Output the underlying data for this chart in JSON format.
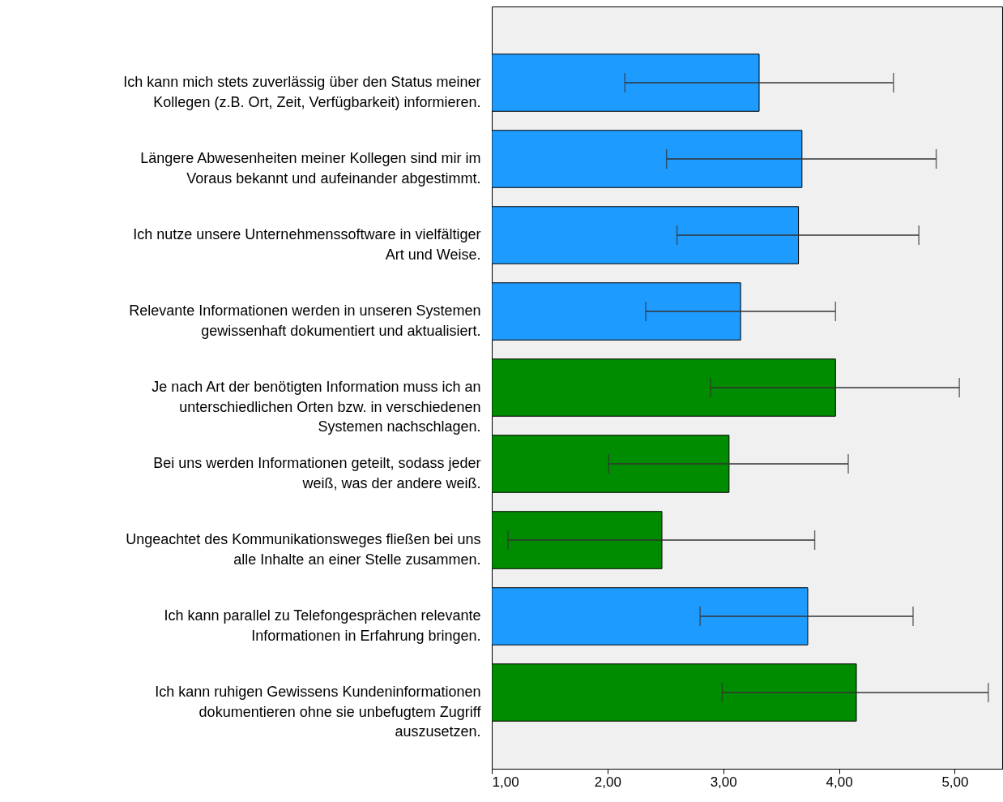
{
  "chart_data": {
    "type": "bar",
    "orientation": "horizontal",
    "categories": [
      "Ich kann mich stets zuverlässig über den Status meiner\nKollegen (z.B. Ort, Zeit, Verfügbarkeit) informieren.",
      "Längere Abwesenheiten meiner Kollegen sind mir im\nVoraus bekannt und aufeinander abgestimmt.",
      "Ich nutze unsere Unternehmenssoftware in vielfältiger\nArt und Weise.",
      "Relevante Informationen werden in unseren Systemen\ngewissenhaft dokumentiert und aktualisiert.",
      "Je nach Art der benötigten Information muss ich an\nunterschiedlichen Orten bzw. in verschiedenen\nSystemen nachschlagen.",
      "Bei uns werden Informationen geteilt, sodass jeder\nweiß, was der andere weiß.",
      "Ungeachtet des Kommunikationsweges fließen bei uns\nalle Inhalte an einer Stelle zusammen.",
      "Ich kann parallel zu Telefongesprächen relevante\nInformationen in Erfahrung bringen.",
      "Ich kann ruhigen Gewissens Kundeninformationen\ndokumentieren ohne sie unbefugtem Zugriff\nauszusetzen."
    ],
    "values": [
      3.31,
      3.68,
      3.65,
      3.15,
      3.97,
      3.05,
      2.47,
      3.73,
      4.15
    ],
    "errors": [
      [
        2.15,
        4.47
      ],
      [
        2.51,
        4.84
      ],
      [
        2.6,
        4.69
      ],
      [
        2.33,
        3.97
      ],
      [
        2.89,
        5.04
      ],
      [
        2.01,
        4.08
      ],
      [
        1.14,
        3.79
      ],
      [
        2.8,
        4.64
      ],
      [
        2.99,
        5.29
      ]
    ],
    "colors": [
      "#1e9bff",
      "#1e9bff",
      "#1e9bff",
      "#1e9bff",
      "#008c00",
      "#008c00",
      "#008c00",
      "#1e9bff",
      "#008c00"
    ],
    "xlim": [
      1,
      5.41
    ],
    "xticks": [
      {
        "value": 1,
        "label": "1,00"
      },
      {
        "value": 2,
        "label": "2,00"
      },
      {
        "value": 3,
        "label": "3,00"
      },
      {
        "value": 4,
        "label": "4,00"
      },
      {
        "value": 5,
        "label": "5,00"
      }
    ],
    "grid": false
  }
}
